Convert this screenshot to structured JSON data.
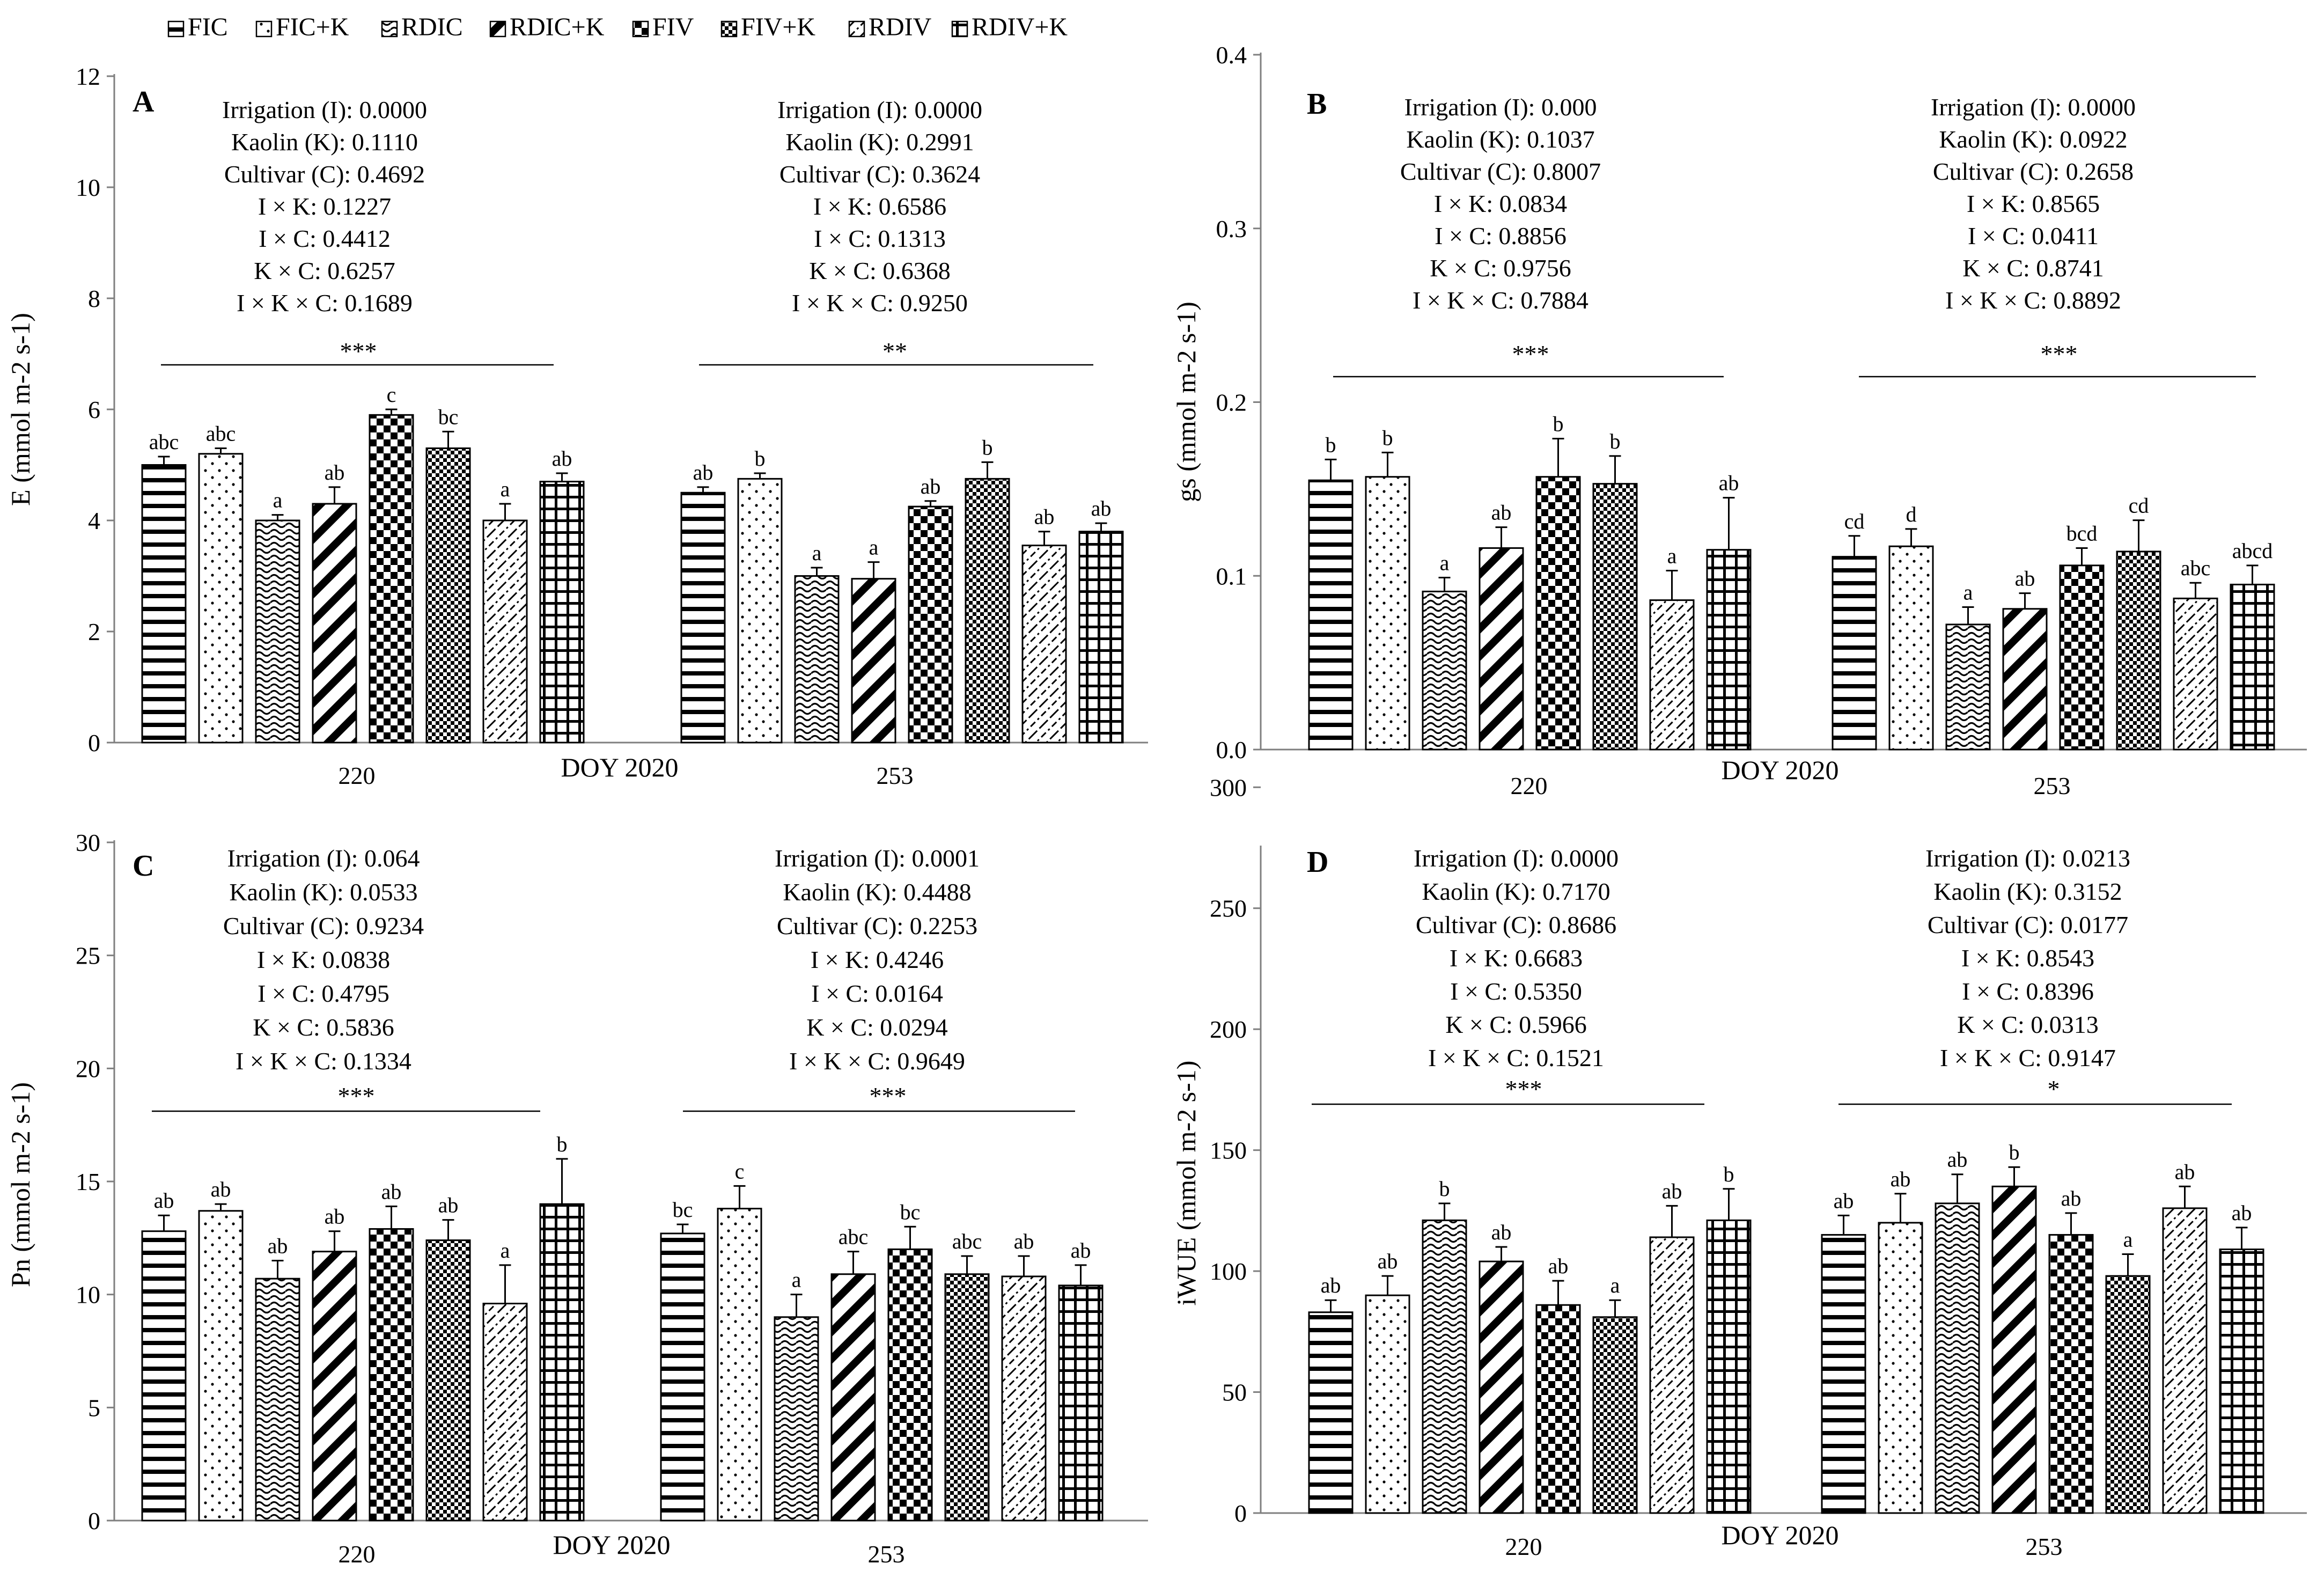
{
  "legend": [
    {
      "label": "FIC",
      "pattern": "hstripe"
    },
    {
      "label": "FIC+K",
      "pattern": "dots"
    },
    {
      "label": "RDIC",
      "pattern": "wave"
    },
    {
      "label": "RDIC+K",
      "pattern": "diagbold"
    },
    {
      "label": "FIV",
      "pattern": "checker"
    },
    {
      "label": "FIV+K",
      "pattern": "checkfine"
    },
    {
      "label": "RDIV",
      "pattern": "diagdash"
    },
    {
      "label": "RDIV+K",
      "pattern": "grid"
    }
  ],
  "colors": {
    "bar_fill": "#ffffff",
    "stroke": "#000000",
    "axis": "#7f7f7f"
  },
  "chart_data": [
    {
      "type": "bar",
      "panel": "A",
      "ylabel": "E (mmol m-2 s-1)",
      "ylim": [
        0,
        12
      ],
      "ytick_step": 2,
      "ytick_decimals": 0,
      "xlabel": "DOY  2020",
      "groups": [
        "220",
        "253"
      ],
      "series_names": [
        "FIC",
        "FIC+K",
        "RDIC",
        "RDIC+K",
        "FIV",
        "FIV+K",
        "RDIV",
        "RDIV+K"
      ],
      "values": [
        [
          5.0,
          5.2,
          4.0,
          4.3,
          5.9,
          5.3,
          4.0,
          4.7
        ],
        [
          4.5,
          4.75,
          3.0,
          2.95,
          4.25,
          4.75,
          3.55,
          3.8
        ]
      ],
      "errors": [
        [
          0.15,
          0.1,
          0.1,
          0.3,
          0.1,
          0.3,
          0.3,
          0.15
        ],
        [
          0.1,
          0.1,
          0.15,
          0.3,
          0.1,
          0.3,
          0.25,
          0.15
        ]
      ],
      "letters": [
        [
          "abc",
          "abc",
          "a",
          "ab",
          "c",
          "bc",
          "a",
          "ab"
        ],
        [
          "ab",
          "b",
          "a",
          "a",
          "ab",
          "b",
          "ab",
          "ab"
        ]
      ],
      "significance": [
        "***",
        "**"
      ],
      "stats": [
        [
          "Irrigation (I): 0.0000",
          "Kaolin (K): 0.1110",
          "Cultivar (C): 0.4692",
          "I × K: 0.1227",
          "I × C: 0.4412",
          "K × C: 0.6257",
          "I × K × C: 0.1689"
        ],
        [
          "Irrigation (I): 0.0000",
          "Kaolin (K): 0.2991",
          "Cultivar (C): 0.3624",
          "I × K: 0.6586",
          "I × C: 0.1313",
          "K × C: 0.6368",
          "I × K × C: 0.9250"
        ]
      ]
    },
    {
      "type": "bar",
      "panel": "B",
      "ylabel": "gs (mmol m-2 s-1)",
      "ylim": [
        0,
        0.4
      ],
      "ytick_step": 0.1,
      "ytick_decimals": 1,
      "xlabel": "DOY 2020",
      "groups": [
        "220",
        "253"
      ],
      "series_names": [
        "FIC",
        "FIC+K",
        "RDIC",
        "RDIC+K",
        "FIV",
        "FIV+K",
        "RDIV",
        "RDIV+K"
      ],
      "values": [
        [
          0.155,
          0.157,
          0.091,
          0.116,
          0.157,
          0.153,
          0.086,
          0.115
        ],
        [
          0.111,
          0.117,
          0.072,
          0.081,
          0.106,
          0.114,
          0.087,
          0.095
        ]
      ],
      "errors": [
        [
          0.012,
          0.014,
          0.008,
          0.012,
          0.022,
          0.016,
          0.017,
          0.03
        ],
        [
          0.012,
          0.01,
          0.01,
          0.009,
          0.01,
          0.018,
          0.009,
          0.011
        ]
      ],
      "letters": [
        [
          "b",
          "b",
          "a",
          "ab",
          "b",
          "b",
          "a",
          "ab"
        ],
        [
          "cd",
          "d",
          "a",
          "ab",
          "bcd",
          "cd",
          "abc",
          "abcd"
        ]
      ],
      "significance": [
        "***",
        "***"
      ],
      "stats": [
        [
          "Irrigation (I): 0.000",
          "Kaolin (K): 0.1037",
          "Cultivar (C): 0.8007",
          "I × K: 0.0834",
          "I × C: 0.8856",
          "K × C: 0.9756",
          "I × K × C: 0.7884"
        ],
        [
          "Irrigation (I): 0.0000",
          "Kaolin (K): 0.0922",
          "Cultivar (C): 0.2658",
          "I × K: 0.8565",
          "I × C: 0.0411",
          "K × C: 0.8741",
          "I × K × C: 0.8892"
        ]
      ]
    },
    {
      "type": "bar",
      "panel": "C",
      "ylabel": "Pn (mmol m-2 s-1)",
      "ylim": [
        0,
        30
      ],
      "ytick_step": 5,
      "ytick_decimals": 0,
      "xlabel": "DOY 2020",
      "groups": [
        "220",
        "253"
      ],
      "series_names": [
        "FIC",
        "FIC+K",
        "RDIC",
        "RDIC+K",
        "FIV",
        "FIV+K",
        "RDIV",
        "RDIV+K"
      ],
      "values": [
        [
          12.8,
          13.7,
          10.7,
          11.9,
          12.9,
          12.4,
          9.6,
          14.0
        ],
        [
          12.7,
          13.8,
          9.0,
          10.9,
          12.0,
          10.9,
          10.8,
          10.4
        ]
      ],
      "errors": [
        [
          0.7,
          0.3,
          0.8,
          0.9,
          1.0,
          0.9,
          1.7,
          2.0
        ],
        [
          0.4,
          1.0,
          1.0,
          1.0,
          1.0,
          0.8,
          0.9,
          0.9
        ]
      ],
      "letters": [
        [
          "ab",
          "ab",
          "ab",
          "ab",
          "ab",
          "ab",
          "a",
          "b"
        ],
        [
          "bc",
          "c",
          "a",
          "abc",
          "bc",
          "abc",
          "ab",
          "ab"
        ]
      ],
      "significance": [
        "***",
        "***"
      ],
      "stats": [
        [
          "Irrigation (I): 0.064",
          "Kaolin (K): 0.0533",
          "Cultivar (C): 0.9234",
          "I × K: 0.0838",
          "I × C: 0.4795",
          "K × C: 0.5836",
          "I × K × C: 0.1334"
        ],
        [
          "Irrigation (I): 0.0001",
          "Kaolin (K): 0.4488",
          "Cultivar (C): 0.2253",
          "I × K: 0.4246",
          "I × C: 0.0164",
          "K × C: 0.0294",
          "I × K × C: 0.9649"
        ]
      ]
    },
    {
      "type": "bar",
      "panel": "D",
      "ylabel": "iWUE  (mmol m-2 s-1)",
      "ylim": [
        0,
        275
      ],
      "ytick_step": 50,
      "ytick_decimals": 0,
      "xlabel": "DOY 2020",
      "groups": [
        "220",
        "253"
      ],
      "series_names": [
        "FIC",
        "FIC+K",
        "RDIC",
        "RDIC+K",
        "FIV",
        "FIV+K",
        "RDIV",
        "RDIV+K"
      ],
      "values": [
        [
          83,
          90,
          121,
          104,
          86,
          81,
          114,
          121
        ],
        [
          115,
          120,
          128,
          135,
          115,
          98,
          126,
          109
        ]
      ],
      "errors": [
        [
          5,
          8,
          7,
          6,
          10,
          7,
          13,
          13
        ],
        [
          8,
          12,
          12,
          8,
          9,
          9,
          9,
          9
        ]
      ],
      "letters": [
        [
          "ab",
          "ab",
          "b",
          "ab",
          "ab",
          "a",
          "ab",
          "b"
        ],
        [
          "ab",
          "ab",
          "ab",
          "b",
          "ab",
          "a",
          "ab",
          "ab"
        ]
      ],
      "significance": [
        "***",
        "*"
      ],
      "stats": [
        [
          "Irrigation (I): 0.0000",
          "Kaolin (K): 0.7170",
          "Cultivar (C): 0.8686",
          "I × K: 0.6683",
          "I × C: 0.5350",
          "K × C: 0.5966",
          "I × K × C: 0.1521"
        ],
        [
          "Irrigation (I): 0.0213",
          "Kaolin (K): 0.3152",
          "Cultivar (C): 0.0177",
          "I × K: 0.8543",
          "I × C: 0.8396",
          "K × C: 0.0313",
          "I × K × C: 0.9147"
        ]
      ]
    }
  ]
}
